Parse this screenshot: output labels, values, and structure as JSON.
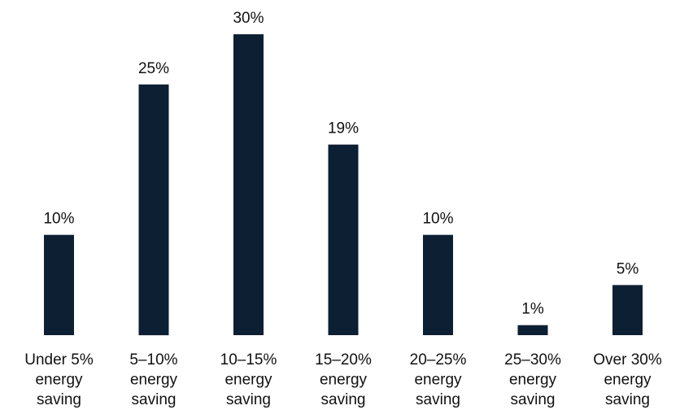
{
  "chart_data": {
    "type": "bar",
    "categories": [
      [
        "Under 5%",
        "energy",
        "saving"
      ],
      [
        "5–10%",
        "energy",
        "saving"
      ],
      [
        "10–15%",
        "energy",
        "saving"
      ],
      [
        "15–20%",
        "energy",
        "saving"
      ],
      [
        "20–25%",
        "energy",
        "saving"
      ],
      [
        "25–30%",
        "energy",
        "saving"
      ],
      [
        "Over 30%",
        "energy",
        "saving"
      ]
    ],
    "values": [
      10,
      25,
      30,
      19,
      10,
      1,
      5
    ],
    "value_labels": [
      "10%",
      "25%",
      "30%",
      "19%",
      "10%",
      "1%",
      "5%"
    ],
    "title": "",
    "xlabel": "",
    "ylabel": "",
    "ylim": [
      0,
      30
    ],
    "grid": false,
    "bar_color": "#0c1f33"
  }
}
